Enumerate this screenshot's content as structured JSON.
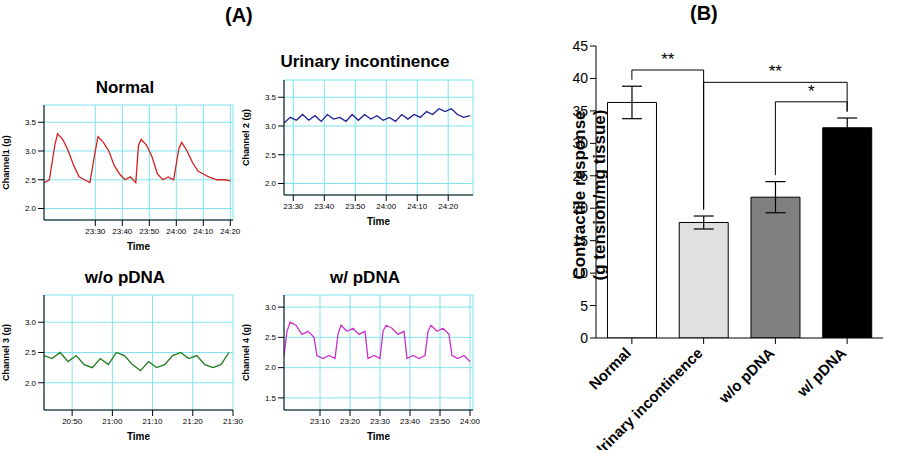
{
  "panel_labels": [
    "(A)",
    "(B)"
  ],
  "chart_data": [
    {
      "type": "line",
      "title": "Normal",
      "xlabel": "Time",
      "ylabel": "Channel1 (g)",
      "color": "#d42020",
      "grid": true,
      "x": [
        1391,
        1393,
        1395,
        1396,
        1398,
        1400,
        1402,
        1404,
        1406,
        1408,
        1410,
        1411,
        1413,
        1415,
        1417,
        1419,
        1421,
        1423,
        1425,
        1426,
        1427,
        1429,
        1431,
        1433,
        1435,
        1437,
        1439,
        1441,
        1442,
        1444,
        1446,
        1448,
        1450,
        1452,
        1455,
        1458,
        1460
      ],
      "values": [
        2.45,
        2.5,
        3.1,
        3.3,
        3.2,
        3.0,
        2.75,
        2.55,
        2.5,
        2.45,
        3.0,
        3.25,
        3.15,
        3.0,
        2.75,
        2.6,
        2.5,
        2.55,
        2.45,
        3.1,
        3.2,
        3.1,
        2.9,
        2.6,
        2.5,
        2.55,
        2.5,
        3.05,
        3.15,
        3.0,
        2.8,
        2.65,
        2.6,
        2.55,
        2.5,
        2.5,
        2.48
      ],
      "xlim": [
        1391,
        1461
      ],
      "xticks": [
        {
          "value": 1410,
          "label": "23:30"
        },
        {
          "value": 1420,
          "label": "23:40"
        },
        {
          "value": 1430,
          "label": "23:50"
        },
        {
          "value": 1440,
          "label": "24:00"
        },
        {
          "value": 1450,
          "label": "24:10"
        },
        {
          "value": 1460,
          "label": "24:20"
        }
      ],
      "ylim": [
        1.8,
        3.8
      ],
      "yticks": [
        {
          "value": 2,
          "label": "2.0"
        },
        2.5,
        {
          "value": 3,
          "label": "3.0"
        },
        3.5
      ]
    },
    {
      "type": "line",
      "title": "Urinary incontinence",
      "xlabel": "Time",
      "ylabel": "Channel 2 (g)",
      "color": "#1c1c96",
      "grid": true,
      "x": [
        1407,
        1409,
        1411,
        1413,
        1415,
        1417,
        1419,
        1421,
        1423,
        1425,
        1427,
        1429,
        1431,
        1433,
        1435,
        1437,
        1439,
        1441,
        1443,
        1445,
        1447,
        1449,
        1451,
        1453,
        1455,
        1457,
        1459,
        1461,
        1463,
        1465,
        1467
      ],
      "values": [
        3.05,
        3.15,
        3.1,
        3.2,
        3.1,
        3.18,
        3.08,
        3.2,
        3.12,
        3.15,
        3.08,
        3.2,
        3.1,
        3.2,
        3.12,
        3.18,
        3.1,
        3.15,
        3.08,
        3.2,
        3.12,
        3.2,
        3.15,
        3.25,
        3.2,
        3.3,
        3.25,
        3.3,
        3.2,
        3.15,
        3.18
      ],
      "xlim": [
        1407,
        1468
      ],
      "xticks": [
        {
          "value": 1410,
          "label": "23:30"
        },
        {
          "value": 1420,
          "label": "23:40"
        },
        {
          "value": 1430,
          "label": "23:50"
        },
        {
          "value": 1440,
          "label": "24:00"
        },
        {
          "value": 1450,
          "label": "24:10"
        },
        {
          "value": 1460,
          "label": "24:20"
        }
      ],
      "ylim": [
        1.8,
        3.8
      ],
      "yticks": [
        {
          "value": 2,
          "label": "2.0"
        },
        2.5,
        {
          "value": 3,
          "label": "3.0"
        },
        3.5
      ]
    },
    {
      "type": "line",
      "title": "w/o pDNA",
      "xlabel": "Time",
      "ylabel": "Channel 3 (g)",
      "color": "#1a7a1a",
      "grid": true,
      "x": [
        1243,
        1245,
        1247,
        1249,
        1251,
        1253,
        1255,
        1257,
        1259,
        1261,
        1263,
        1265,
        1267,
        1269,
        1271,
        1273,
        1275,
        1277,
        1279,
        1281,
        1283,
        1285,
        1287,
        1289
      ],
      "values": [
        2.45,
        2.4,
        2.5,
        2.35,
        2.45,
        2.3,
        2.25,
        2.4,
        2.3,
        2.5,
        2.45,
        2.3,
        2.2,
        2.35,
        2.25,
        2.3,
        2.45,
        2.5,
        2.4,
        2.45,
        2.3,
        2.25,
        2.3,
        2.5
      ],
      "xlim": [
        1243,
        1290
      ],
      "xticks": [
        {
          "value": 1250,
          "label": "20:50"
        },
        {
          "value": 1260,
          "label": "21:00"
        },
        {
          "value": 1270,
          "label": "21:10"
        },
        {
          "value": 1280,
          "label": "21:20"
        },
        {
          "value": 1290,
          "label": "21:30"
        }
      ],
      "ylim": [
        1.55,
        3.45
      ],
      "yticks": [
        {
          "value": 2,
          "label": "2.0"
        },
        2.5,
        {
          "value": 3,
          "label": "3.0"
        }
      ]
    },
    {
      "type": "line",
      "title": "w/ pDNA",
      "xlabel": "Time",
      "ylabel": "Channel 4 (g)",
      "color": "#cc2fcc",
      "grid": true,
      "x": [
        1378,
        1379,
        1380,
        1382,
        1384,
        1386,
        1388,
        1389,
        1391,
        1393,
        1395,
        1396,
        1397,
        1399,
        1401,
        1403,
        1405,
        1406,
        1408,
        1410,
        1411,
        1412,
        1414,
        1416,
        1418,
        1419,
        1421,
        1423,
        1425,
        1426,
        1427,
        1429,
        1431,
        1433,
        1434,
        1436,
        1438,
        1440
      ],
      "values": [
        2.2,
        2.6,
        2.75,
        2.7,
        2.55,
        2.6,
        2.5,
        2.2,
        2.15,
        2.2,
        2.15,
        2.55,
        2.7,
        2.6,
        2.65,
        2.55,
        2.6,
        2.15,
        2.2,
        2.15,
        2.6,
        2.7,
        2.65,
        2.55,
        2.6,
        2.15,
        2.2,
        2.15,
        2.2,
        2.6,
        2.7,
        2.6,
        2.65,
        2.55,
        2.2,
        2.15,
        2.2,
        2.1
      ],
      "xlim": [
        1378,
        1441
      ],
      "xticks": [
        {
          "value": 1390,
          "label": "23:10"
        },
        {
          "value": 1400,
          "label": "23:20"
        },
        {
          "value": 1410,
          "label": "23:30"
        },
        {
          "value": 1420,
          "label": "23:40"
        },
        {
          "value": 1430,
          "label": "23:50"
        },
        {
          "value": 1440,
          "label": "24:00"
        }
      ],
      "ylim": [
        1.3,
        3.2
      ],
      "yticks": [
        1.5,
        {
          "value": 2,
          "label": "2.0"
        },
        2.5,
        {
          "value": 3,
          "label": "3.0"
        }
      ]
    },
    {
      "type": "bar",
      "ylabel": "Contractile response\n(g tension/mg tissue)",
      "categories": [
        "Normal",
        "Urinary incontinence",
        "w/o pDNA",
        "w/ pDNA"
      ],
      "values": [
        36.3,
        17.8,
        21.7,
        32.4
      ],
      "errors": [
        2.5,
        1.0,
        2.4,
        1.5
      ],
      "colors": [
        "#ffffff",
        "#e0e0e0",
        "#808080",
        "#000000"
      ],
      "ylim": [
        0,
        45
      ],
      "yticks": [
        0,
        5,
        10,
        15,
        20,
        25,
        30,
        35,
        40,
        45
      ],
      "annotations": [
        {
          "from": "Normal",
          "to": "Urinary incontinence",
          "text": "**"
        },
        {
          "from": "Urinary incontinence",
          "to": "w/ pDNA",
          "text": "**"
        },
        {
          "from": "w/o pDNA",
          "to": "w/ pDNA",
          "text": "*"
        }
      ]
    }
  ]
}
